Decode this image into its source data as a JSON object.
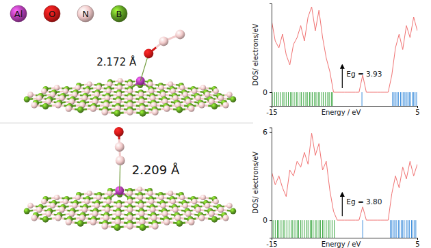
{
  "chart_data": [
    {
      "type": "line",
      "x_label": "Energy / eV",
      "y_label": "DOS/ electrons/eV",
      "annotation": "Eg = 3.93",
      "xlim": [
        -15,
        5
      ],
      "xticks": [
        -15,
        5
      ],
      "ylim": [
        -0.8,
        5.2
      ],
      "yticks": [
        0
      ],
      "x": [
        -15,
        -14.5,
        -14,
        -13.5,
        -13,
        -12.5,
        -12,
        -11.5,
        -11,
        -10.5,
        -10,
        -9.5,
        -9,
        -8.5,
        -8,
        -7.5,
        -7,
        -6.5,
        -6,
        -5.5,
        -5,
        -4.5,
        -4,
        -3.5,
        -3,
        -2.5,
        -2,
        -1.5,
        -1,
        -0.5,
        0,
        0.5,
        1,
        1.5,
        2,
        2.5,
        3,
        3.5,
        4,
        4.5,
        5
      ],
      "series": [
        {
          "color": "#f07272",
          "values": [
            4.2,
            3.0,
            2.6,
            3.4,
            2.2,
            1.6,
            2.8,
            3.2,
            3.9,
            3.0,
            4.4,
            5.0,
            3.6,
            4.8,
            3.2,
            2.0,
            1.2,
            0,
            0,
            0,
            0,
            0,
            0,
            0,
            0,
            1.0,
            0,
            0,
            0,
            0,
            0,
            0,
            0,
            1.0,
            2.6,
            3.4,
            2.5,
            3.9,
            3.2,
            4.4,
            3.6
          ]
        }
      ],
      "levels": [
        {
          "color": "#3aa640",
          "energies": [
            -14.9,
            -14.6,
            -14.3,
            -14.1,
            -13.8,
            -13.5,
            -13.3,
            -13.0,
            -12.7,
            -12.4,
            -12.2,
            -11.9,
            -11.6,
            -11.4,
            -11.1,
            -10.9,
            -10.6,
            -10.3,
            -10.1,
            -9.8,
            -9.6,
            -9.4,
            -9.1,
            -8.9,
            -8.6,
            -8.4,
            -8.1,
            -7.9,
            -7.6,
            -7.3,
            -7.1,
            -6.8,
            -6.6
          ]
        },
        {
          "color": "#3f8fdc",
          "energies": [
            -2.6,
            1.6,
            1.8,
            2.0,
            2.2,
            2.4,
            2.7,
            2.9,
            3.1,
            3.3,
            3.5,
            3.7,
            3.9,
            4.1,
            4.3,
            4.5,
            4.7,
            4.9
          ]
        }
      ]
    },
    {
      "type": "line",
      "x_label": "Energy / eV",
      "y_label": "DOS/ electrons/eV",
      "annotation": "Eg = 3.80",
      "xlim": [
        -15,
        5
      ],
      "xticks": [
        -15,
        5
      ],
      "ylim": [
        -1.2,
        6.3
      ],
      "yticks": [
        0,
        6
      ],
      "x": [
        -15,
        -14.5,
        -14,
        -13.5,
        -13,
        -12.5,
        -12,
        -11.5,
        -11,
        -10.5,
        -10,
        -9.5,
        -9,
        -8.5,
        -8,
        -7.5,
        -7,
        -6.5,
        -6,
        -5.5,
        -5,
        -4.5,
        -4,
        -3.5,
        -3,
        -2.5,
        -2,
        -1.5,
        -1,
        -0.5,
        0,
        0.5,
        1,
        1.5,
        2,
        2.5,
        3,
        3.5,
        4,
        4.5,
        5
      ],
      "series": [
        {
          "color": "#f07272",
          "values": [
            3.3,
            2.4,
            3.0,
            2.2,
            1.6,
            3.4,
            3.0,
            4.0,
            3.6,
            4.6,
            3.8,
            5.9,
            4.4,
            5.2,
            3.4,
            4.0,
            2.0,
            0.6,
            0,
            0,
            0,
            0,
            0,
            0,
            0,
            0.9,
            0,
            0,
            0,
            0,
            0,
            0,
            0,
            1.8,
            3.0,
            2.2,
            3.6,
            2.8,
            4.0,
            3.0,
            3.8
          ]
        }
      ],
      "levels": [
        {
          "color": "#3aa640",
          "energies": [
            -14.8,
            -14.5,
            -14.2,
            -14.0,
            -13.7,
            -13.4,
            -13.2,
            -12.9,
            -12.6,
            -12.3,
            -12.1,
            -11.8,
            -11.5,
            -11.3,
            -11.0,
            -10.8,
            -10.5,
            -10.2,
            -10.0,
            -9.7,
            -9.5,
            -9.3,
            -9.0,
            -8.8,
            -8.5,
            -8.3,
            -8.0,
            -7.8,
            -7.5,
            -7.2,
            -7.0,
            -6.7,
            -6.4
          ]
        },
        {
          "color": "#3f8fdc",
          "energies": [
            -2.5,
            1.3,
            1.5,
            1.7,
            1.9,
            2.1,
            2.4,
            2.6,
            2.8,
            3.0,
            3.2,
            3.5,
            3.7,
            3.9,
            4.2,
            4.4,
            4.6,
            4.8
          ]
        }
      ]
    }
  ],
  "atom_legend": [
    {
      "label": "Al",
      "color": "#b23cb2"
    },
    {
      "label": "O",
      "color": "#d41818"
    },
    {
      "label": "N",
      "color": "#f2caca"
    },
    {
      "label": "B",
      "color": "#5e9e22"
    }
  ],
  "structures": [
    {
      "distance_label": "2.172 Å",
      "adsorbate": [
        "O",
        "N",
        "N"
      ]
    },
    {
      "distance_label": "2.209 Å",
      "adsorbate": [
        "N",
        "N",
        "O"
      ]
    }
  ]
}
